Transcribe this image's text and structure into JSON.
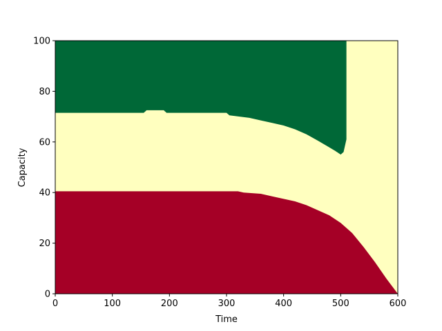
{
  "chart_data": {
    "type": "heatmap",
    "title": "",
    "xlabel": "Time",
    "ylabel": "Capacity",
    "xlim": [
      0,
      600
    ],
    "ylim": [
      0,
      100
    ],
    "xticks": [
      0,
      100,
      200,
      300,
      400,
      500,
      600
    ],
    "yticks": [
      0,
      20,
      40,
      60,
      80,
      100
    ],
    "grid": false,
    "colors": {
      "low": "#a50026",
      "mid": "#ffffbf",
      "high": "#006837"
    },
    "regions": [
      {
        "color_key": "low",
        "description_from_axis": "below lower boundary",
        "boundary": {
          "x": [
            0,
            320,
            330,
            360,
            380,
            400,
            420,
            440,
            460,
            480,
            500,
            520,
            540,
            560,
            580,
            590,
            595,
            600
          ],
          "y": [
            40.5,
            40.5,
            40,
            39.5,
            38.5,
            37.5,
            36.5,
            35,
            33,
            31,
            28,
            24,
            18.5,
            12.5,
            6,
            3,
            1.5,
            0
          ]
        }
      },
      {
        "color_key": "high",
        "description_from_axis": "above upper boundary, until time limit",
        "boundary": {
          "x": [
            0,
            155,
            160,
            190,
            195,
            300,
            305,
            340,
            360,
            380,
            400,
            420,
            440,
            460,
            475,
            490,
            500,
            505,
            510
          ],
          "y": [
            71.5,
            71.5,
            72.5,
            72.5,
            71.5,
            71.5,
            70.5,
            69.5,
            68.5,
            67.5,
            66.5,
            65,
            63,
            60.5,
            58.5,
            56.5,
            55,
            56,
            61
          ]
        },
        "x_end": 510
      }
    ]
  }
}
